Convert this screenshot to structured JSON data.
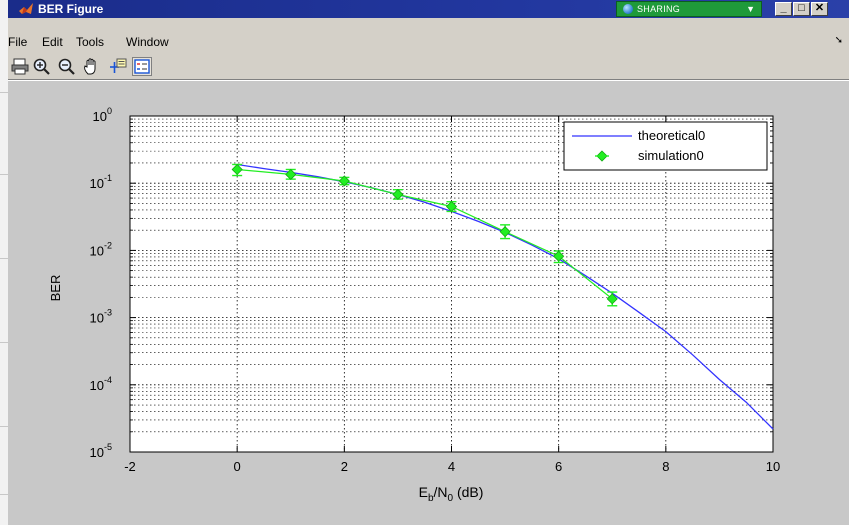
{
  "window": {
    "title": "BER Figure",
    "sharing_label": "SHARING",
    "minimize": "_",
    "maximize": "□",
    "close": "✕"
  },
  "menu": {
    "items": [
      "File",
      "Edit",
      "Tools",
      "Window"
    ]
  },
  "toolbar": {
    "icons": [
      "print-icon",
      "zoom-in-icon",
      "zoom-out-icon",
      "pan-hand-icon",
      "data-cursor-icon",
      "legend-icon"
    ]
  },
  "chart_data": {
    "type": "line",
    "xlabel": "E_b/N_0 (dB)",
    "ylabel": "BER",
    "xlim": [
      -2,
      10
    ],
    "ylim_log10": [
      -5,
      0
    ],
    "yscale": "log",
    "grid": true,
    "xticks": [
      -2,
      0,
      2,
      4,
      6,
      8,
      10
    ],
    "xtick_labels": [
      "-2",
      "0",
      "2",
      "4",
      "6",
      "8",
      "10"
    ],
    "yticks_exp": [
      0,
      -1,
      -2,
      -3,
      -4,
      -5
    ],
    "ytick_base": "10",
    "legend_position": "top-right",
    "series": [
      {
        "name": "theoretical0",
        "color": "#3333ff",
        "style": "line",
        "x": [
          0,
          0.5,
          1,
          1.5,
          2,
          2.5,
          3,
          3.5,
          4,
          4.5,
          5,
          5.5,
          6,
          6.5,
          7,
          7.5,
          8,
          8.5,
          9,
          9.5,
          10
        ],
        "y": [
          0.19,
          0.165,
          0.145,
          0.125,
          0.105,
          0.086,
          0.068,
          0.052,
          0.038,
          0.027,
          0.0185,
          0.012,
          0.0075,
          0.0042,
          0.0023,
          0.0012,
          0.00062,
          0.00028,
          0.00012,
          5.5e-05,
          2.2e-05
        ]
      },
      {
        "name": "simulation0",
        "color": "#22ee22",
        "style": "marker-line",
        "x": [
          0,
          1,
          2,
          3,
          4,
          5,
          6,
          7
        ],
        "y": [
          0.16,
          0.135,
          0.108,
          0.068,
          0.045,
          0.019,
          0.0082,
          0.0019
        ],
        "err_low": [
          0.13,
          0.115,
          0.095,
          0.058,
          0.038,
          0.015,
          0.0066,
          0.0015
        ],
        "err_high": [
          0.19,
          0.16,
          0.122,
          0.08,
          0.053,
          0.024,
          0.0098,
          0.0024
        ]
      }
    ]
  }
}
